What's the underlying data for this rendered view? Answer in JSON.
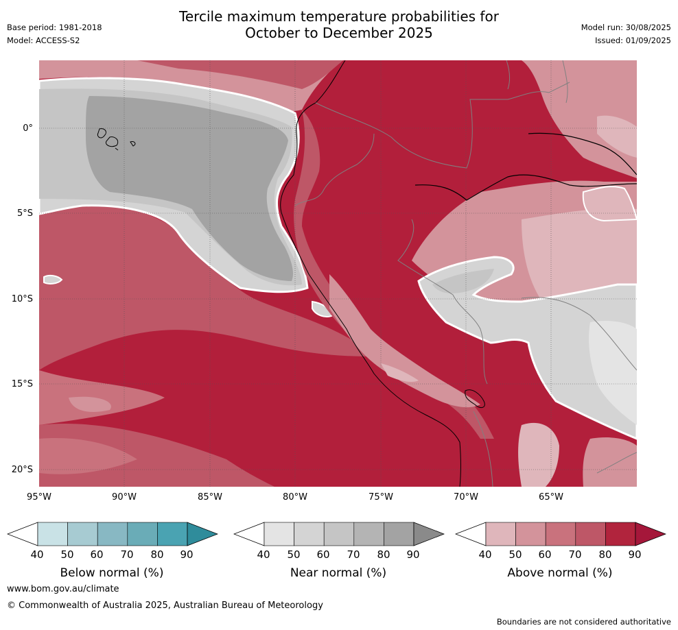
{
  "header": {
    "title_line1": "Tercile maximum temperature probabilities for",
    "title_line2": "October to December 2025",
    "base_period": "Base period: 1981-2018",
    "model": "Model: ACCESS-S2",
    "model_run": "Model run: 30/08/2025",
    "issued": "Issued: 01/09/2025"
  },
  "map": {
    "lat_labels": [
      "0°",
      "5°S",
      "10°S",
      "15°S",
      "20°S"
    ],
    "lon_labels": [
      "95°W",
      "90°W",
      "85°W",
      "80°W",
      "75°W",
      "70°W",
      "65°W"
    ]
  },
  "legend": {
    "ticks": [
      "40",
      "50",
      "60",
      "70",
      "80",
      "90"
    ],
    "below_label": "Below normal (%)",
    "near_label": "Near normal (%)",
    "above_label": "Above normal (%)",
    "below_colors": [
      "#ffffff",
      "#c9e2e6",
      "#a7cbd2",
      "#88b8c3",
      "#6aacb7",
      "#4aa3b2",
      "#2f8c9b"
    ],
    "near_colors": [
      "#ffffff",
      "#e4e4e4",
      "#d4d4d4",
      "#c5c5c5",
      "#b4b4b4",
      "#a3a3a3",
      "#8a8a8a"
    ],
    "above_colors": [
      "#ffffff",
      "#dfb6bb",
      "#d3939b",
      "#c9727d",
      "#be5767",
      "#b1243d",
      "#a5173a"
    ]
  },
  "footer": {
    "url": "www.bom.gov.au/climate",
    "copyright": "© Commonwealth of Australia 2025, Australian Bureau of Meteorology",
    "disclaimer": "Boundaries are not considered authoritative"
  }
}
